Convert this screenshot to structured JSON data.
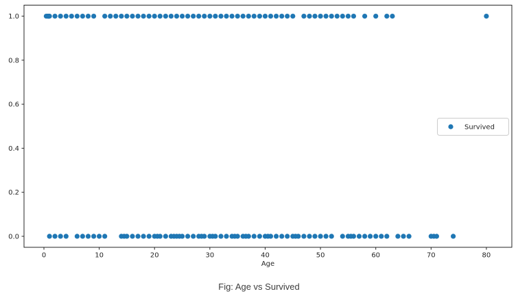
{
  "figure": {
    "caption": "Fig: Age vs Survived"
  },
  "chart_data": {
    "type": "scatter",
    "title": "",
    "xlabel": "Age",
    "ylabel": "",
    "x_ticks": [
      0,
      10,
      20,
      30,
      40,
      50,
      60,
      70,
      80
    ],
    "y_tick_labels": [
      "0.0",
      "0.2",
      "0.4",
      "0.6",
      "0.8",
      "1.0"
    ],
    "xlim": [
      -3.6,
      84.6
    ],
    "ylim": [
      -0.05,
      1.05
    ],
    "grid": false,
    "marker_color": "#1f77b4",
    "axis_color": "#262626",
    "legend": {
      "position": "center-right",
      "entries": [
        {
          "label": "Survived",
          "color": "#1f77b4",
          "marker": "dot-icon"
        }
      ]
    },
    "series": [
      {
        "name": "Survived = 1",
        "y": 1.0,
        "ages": [
          0.42,
          0.67,
          0.75,
          0.83,
          0.92,
          1,
          2,
          3,
          4,
          5,
          6,
          7,
          8,
          9,
          11,
          12,
          13,
          14,
          15,
          16,
          17,
          18,
          19,
          20,
          21,
          22,
          23,
          24,
          25,
          26,
          27,
          28,
          29,
          30,
          31,
          32,
          33,
          34,
          35,
          36,
          37,
          38,
          39,
          40,
          41,
          42,
          43,
          44,
          45,
          47,
          48,
          49,
          50,
          51,
          52,
          53,
          54,
          55,
          56,
          58,
          60,
          62,
          63,
          80
        ]
      },
      {
        "name": "Survived = 0",
        "y": 0.0,
        "ages": [
          1,
          2,
          3,
          4,
          6,
          7,
          8,
          9,
          10,
          11,
          14,
          14.5,
          15,
          16,
          17,
          18,
          19,
          20,
          20.5,
          21,
          22,
          23,
          23.5,
          24,
          24.5,
          25,
          26,
          27,
          28,
          28.5,
          29,
          30,
          30.5,
          31,
          32,
          33,
          34,
          34.5,
          35,
          36,
          36.5,
          37,
          38,
          39,
          40,
          40.5,
          41,
          42,
          43,
          44,
          45,
          45.5,
          46,
          47,
          48,
          49,
          50,
          51,
          52,
          54,
          55,
          55.5,
          56,
          57,
          58,
          59,
          60,
          61,
          62,
          64,
          65,
          66,
          70,
          70.5,
          71,
          74
        ]
      }
    ]
  }
}
